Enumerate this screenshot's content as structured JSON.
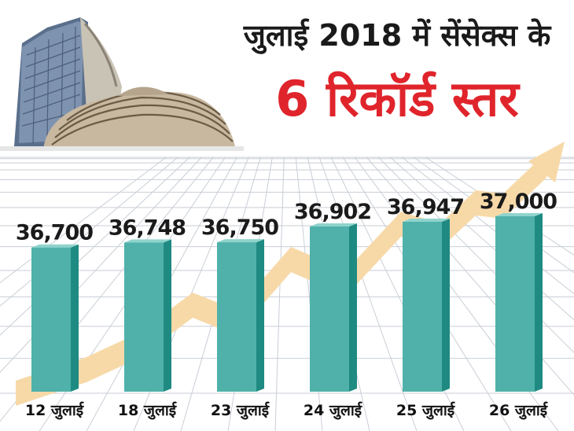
{
  "header": {
    "title_line1": "जुलाई 2018 में सेंसेक्स के",
    "title_line2": "6 रिकॉर्ड स्तर"
  },
  "colors": {
    "bar_front": "#4fb1aa",
    "bar_side": "#1f8a82",
    "bar_top": "#8fd3cd",
    "arrow": "#f7d9a8",
    "title_accent": "#e0242b",
    "grid": "#c9ced6"
  },
  "icons": {
    "building": "stock-exchange-building-image"
  },
  "chart_data": {
    "type": "bar",
    "categories": [
      "12 जुलाई",
      "18 जुलाई",
      "23 जुलाई",
      "24 जुलाई",
      "25 जुलाई",
      "26 जुलाई"
    ],
    "values": [
      36700,
      36748,
      36750,
      36902,
      36947,
      37000
    ],
    "value_labels": [
      "36,700",
      "36,748",
      "36,750",
      "36,902",
      "36,947",
      "37,000"
    ],
    "title": "जुलाई 2018 में सेंसेक्स के 6 रिकॉर्ड स्तर",
    "xlabel": "",
    "ylabel": "",
    "grid": true,
    "legend": "none"
  }
}
